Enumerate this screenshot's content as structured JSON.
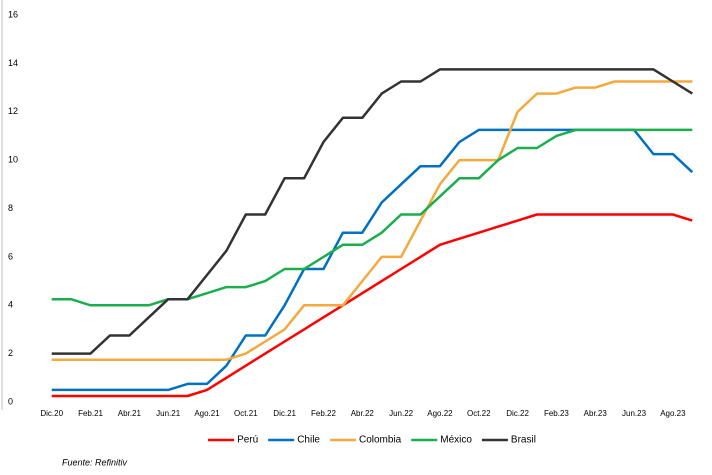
{
  "chart_data": {
    "type": "line",
    "categories": [
      "Dic.20",
      null,
      "Feb.21",
      null,
      "Abr.21",
      null,
      "Jun.21",
      null,
      "Ago.21",
      null,
      "Oct.21",
      null,
      "Dic.21",
      null,
      "Feb.22",
      null,
      "Abr.22",
      null,
      "Jun.22",
      null,
      "Ago.22",
      null,
      "Oct.22",
      null,
      "Dic.22",
      null,
      "Feb.23",
      null,
      "Abr.23",
      null,
      "Jun.23",
      null,
      "Ago.23",
      null
    ],
    "series": [
      {
        "name": "Perú",
        "color": "#ff0000",
        "values": [
          0.25,
          0.25,
          0.25,
          0.25,
          0.25,
          0.25,
          0.25,
          0.25,
          0.5,
          1.0,
          1.5,
          2.0,
          2.5,
          3.0,
          3.5,
          4.0,
          4.5,
          5.0,
          5.5,
          6.0,
          6.5,
          6.75,
          7.0,
          7.25,
          7.5,
          7.75,
          7.75,
          7.75,
          7.75,
          7.75,
          7.75,
          7.75,
          7.75,
          7.5
        ]
      },
      {
        "name": "Chile",
        "color": "#0070c0",
        "values": [
          0.5,
          0.5,
          0.5,
          0.5,
          0.5,
          0.5,
          0.5,
          0.75,
          0.75,
          1.5,
          2.75,
          2.75,
          4.0,
          5.5,
          5.5,
          7.0,
          7.0,
          8.25,
          9.0,
          9.75,
          9.75,
          10.75,
          11.25,
          11.25,
          11.25,
          11.25,
          11.25,
          11.25,
          11.25,
          11.25,
          11.25,
          10.25,
          10.25,
          9.5
        ]
      },
      {
        "name": "Colombia",
        "color": "#f4a93f",
        "values": [
          1.75,
          1.75,
          1.75,
          1.75,
          1.75,
          1.75,
          1.75,
          1.75,
          1.75,
          1.75,
          2.0,
          2.5,
          3.0,
          4.0,
          4.0,
          4.0,
          5.0,
          6.0,
          6.0,
          7.5,
          9.0,
          10.0,
          10.0,
          10.0,
          12.0,
          12.75,
          12.75,
          13.0,
          13.0,
          13.25,
          13.25,
          13.25,
          13.25,
          13.25
        ]
      },
      {
        "name": "México",
        "color": "#1aae4c",
        "values": [
          4.25,
          4.25,
          4.0,
          4.0,
          4.0,
          4.0,
          4.25,
          4.25,
          4.5,
          4.75,
          4.75,
          5.0,
          5.5,
          5.5,
          6.0,
          6.5,
          6.5,
          7.0,
          7.75,
          7.75,
          8.5,
          9.25,
          9.25,
          10.0,
          10.5,
          10.5,
          11.0,
          11.25,
          11.25,
          11.25,
          11.25,
          11.25,
          11.25,
          11.25
        ]
      },
      {
        "name": "Brasil",
        "color": "#333333",
        "values": [
          2.0,
          2.0,
          2.0,
          2.75,
          2.75,
          3.5,
          4.25,
          4.25,
          5.25,
          6.25,
          7.75,
          7.75,
          9.25,
          9.25,
          10.75,
          11.75,
          11.75,
          12.75,
          13.25,
          13.25,
          13.75,
          13.75,
          13.75,
          13.75,
          13.75,
          13.75,
          13.75,
          13.75,
          13.75,
          13.75,
          13.75,
          13.75,
          13.25,
          12.75
        ]
      }
    ],
    "ylim": [
      0,
      16
    ],
    "yticks": [
      0,
      2,
      4,
      6,
      8,
      10,
      12,
      14,
      16
    ],
    "grid": false,
    "legend": "bottom",
    "source": "Fuente: Refinitiv"
  }
}
